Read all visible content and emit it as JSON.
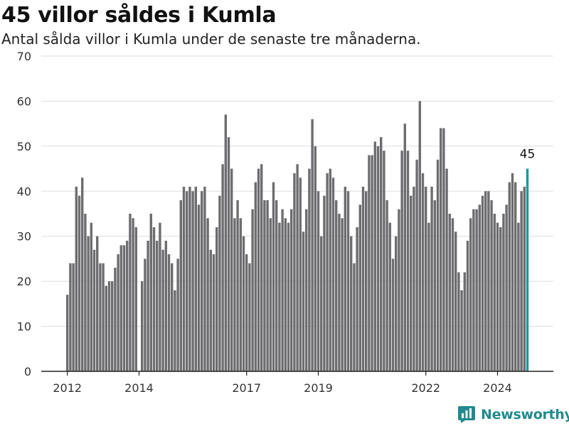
{
  "title": "45 villor såldes i Kumla",
  "subtitle": "Antal sålda villor i Kumla under de senaste tre månaderna.",
  "brand": "Newsworthy",
  "colors": {
    "bar": "#6d6d70",
    "highlight": "#1a9a96",
    "grid": "#dddddd",
    "axis": "#222222",
    "brand": "#238a8d"
  },
  "chart_data": {
    "type": "bar",
    "title": "45 villor såldes i Kumla",
    "subtitle": "Antal sålda villor i Kumla under de senaste tre månaderna.",
    "xlabel": "",
    "ylabel": "",
    "ylim": [
      0,
      70
    ],
    "yticks": [
      0,
      10,
      20,
      30,
      40,
      50,
      60,
      70
    ],
    "xticks": [
      "2012",
      "2014",
      "2017",
      "2019",
      "2022",
      "2024"
    ],
    "grid": true,
    "first_period": "2012-01",
    "values": [
      17,
      24,
      24,
      41,
      39,
      43,
      35,
      30,
      33,
      27,
      30,
      24,
      24,
      19,
      20,
      20,
      23,
      26,
      28,
      28,
      29,
      35,
      34,
      32,
      0,
      20,
      25,
      29,
      35,
      32,
      29,
      33,
      27,
      29,
      26,
      24,
      18,
      25,
      38,
      41,
      40,
      41,
      40,
      41,
      37,
      40,
      41,
      34,
      27,
      26,
      32,
      39,
      46,
      57,
      52,
      45,
      34,
      38,
      34,
      30,
      26,
      24,
      36,
      42,
      45,
      46,
      38,
      38,
      34,
      42,
      38,
      33,
      36,
      34,
      33,
      36,
      44,
      46,
      43,
      31,
      36,
      45,
      56,
      50,
      40,
      30,
      39,
      44,
      45,
      43,
      38,
      35,
      34,
      41,
      40,
      30,
      24,
      32,
      37,
      41,
      40,
      48,
      48,
      51,
      50,
      52,
      49,
      38,
      33,
      25,
      30,
      36,
      49,
      55,
      49,
      39,
      41,
      47,
      60,
      44,
      41,
      33,
      41,
      38,
      47,
      54,
      54,
      45,
      35,
      34,
      31,
      22,
      18,
      22,
      29,
      34,
      36,
      36,
      37,
      39,
      40,
      40,
      38,
      35,
      33,
      32,
      35,
      37,
      42,
      44,
      42,
      33,
      40,
      41,
      45
    ],
    "highlight_index": 154,
    "highlight_label": "45"
  }
}
